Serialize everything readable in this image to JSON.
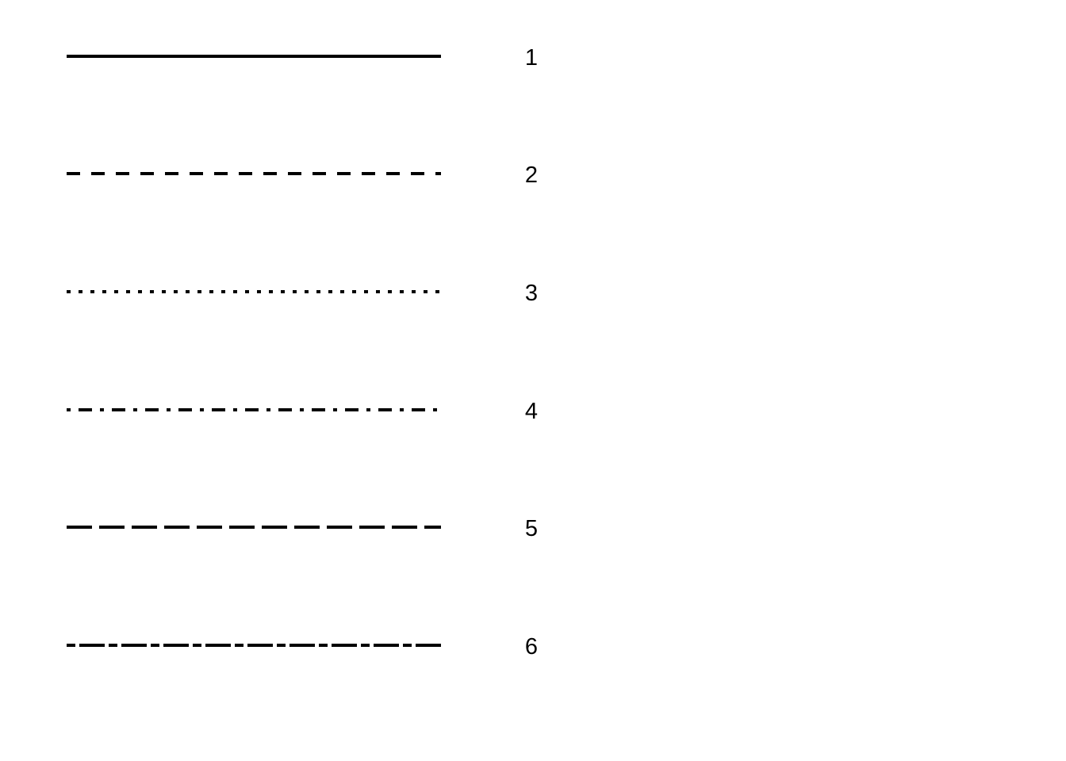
{
  "line_color": "#000000",
  "background_color": "#ffffff",
  "line_types": [
    {
      "label": "1",
      "style": "solid"
    },
    {
      "label": "2",
      "style": "dashed"
    },
    {
      "label": "3",
      "style": "dotted"
    },
    {
      "label": "4",
      "style": "dotdash"
    },
    {
      "label": "5",
      "style": "longdash"
    },
    {
      "label": "6",
      "style": "twodash"
    }
  ]
}
